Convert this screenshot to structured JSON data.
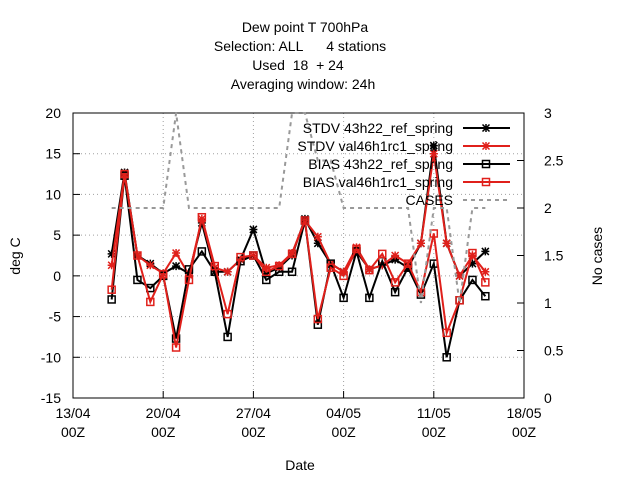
{
  "chart_data": {
    "type": "line",
    "title": "Dew point T 700hPa",
    "subtitle": [
      "Selection: ALL      4 stations",
      "Used  18  + 24",
      "Averaging window: 24h"
    ],
    "xlabel": "Date",
    "ylabel": "deg C",
    "y2label": "No cases",
    "x": [
      "16/04 00Z",
      "17/04 00Z",
      "18/04 00Z",
      "19/04 00Z",
      "20/04 00Z",
      "21/04 00Z",
      "22/04 00Z",
      "23/04 00Z",
      "24/04 00Z",
      "25/04 00Z",
      "26/04 00Z",
      "27/04 00Z",
      "28/04 00Z",
      "29/04 00Z",
      "30/04 00Z",
      "01/05 00Z",
      "02/05 00Z",
      "03/05 00Z",
      "04/05 00Z",
      "05/05 00Z",
      "06/05 00Z",
      "07/05 00Z",
      "08/05 00Z",
      "09/05 00Z",
      "10/05 00Z",
      "11/05 00Z",
      "12/05 00Z",
      "13/05 00Z",
      "14/05 00Z",
      "15/05 00Z"
    ],
    "xlim": [
      "13/04 00Z",
      "18/05 00Z"
    ],
    "xticks": [
      "13/04 00Z",
      "20/04 00Z",
      "27/04 00Z",
      "04/05 00Z",
      "11/05 00Z",
      "18/05 00Z"
    ],
    "ylim": [
      -15,
      20
    ],
    "yticks": [
      -15,
      -10,
      -5,
      0,
      5,
      10,
      15,
      20
    ],
    "y2lim": [
      0,
      3
    ],
    "y2ticks": [
      0,
      0.5,
      1,
      1.5,
      2,
      2.5,
      3
    ],
    "grid": true,
    "legend": "top-right",
    "series": [
      {
        "name": "STDV 43h22_ref_spring",
        "color": "#000000",
        "marker": "star",
        "values": [
          2.7,
          12.7,
          2.5,
          1.5,
          0.3,
          1.2,
          0.3,
          6.5,
          0.5,
          0.5,
          2.0,
          5.7,
          0.3,
          1.0,
          2.5,
          7.0,
          4.0,
          1.5,
          0.5,
          3.0,
          0.8,
          1.3,
          2.0,
          1.0,
          4.0,
          16.0,
          4.0,
          0.0,
          1.5,
          3.0
        ]
      },
      {
        "name": "STDV val46h1rc1_spring",
        "color": "#e0201b",
        "marker": "star",
        "values": [
          1.3,
          12.5,
          2.5,
          1.3,
          0.3,
          2.8,
          0.1,
          7.0,
          1.0,
          0.5,
          2.0,
          2.5,
          1.0,
          1.3,
          2.8,
          6.8,
          4.8,
          1.5,
          0.5,
          3.5,
          0.8,
          1.3,
          2.5,
          1.5,
          4.0,
          15.0,
          4.0,
          0.0,
          2.5,
          0.5
        ]
      },
      {
        "name": "BIAS 43h22_ref_spring",
        "color": "#000000",
        "marker": "square",
        "values": [
          -2.9,
          12.3,
          -0.5,
          -1.5,
          0.0,
          -7.7,
          0.8,
          3.0,
          0.5,
          -7.5,
          1.8,
          2.5,
          -0.5,
          0.5,
          0.5,
          6.8,
          -6.0,
          1.5,
          -2.7,
          3.0,
          -2.7,
          1.8,
          -2.0,
          1.0,
          -2.3,
          1.5,
          -10.0,
          -3.0,
          -0.5,
          -2.5
        ]
      },
      {
        "name": "BIAS val46h1rc1_spring",
        "color": "#e0201b",
        "marker": "square",
        "values": [
          -1.7,
          12.5,
          2.5,
          -3.2,
          0.2,
          -8.8,
          -0.5,
          7.2,
          1.2,
          -4.7,
          2.3,
          2.5,
          0.5,
          1.2,
          2.7,
          6.8,
          -5.3,
          1.0,
          0.0,
          3.3,
          0.7,
          2.7,
          -0.8,
          1.5,
          -2.0,
          5.2,
          -7.0,
          -3.0,
          2.8,
          -0.8
        ]
      },
      {
        "name": "CASES",
        "color": "#999999",
        "marker": "none",
        "dash": true,
        "axis": "y2",
        "values": [
          2,
          2,
          2,
          2,
          2,
          3,
          2,
          2,
          2,
          2,
          2,
          2,
          2,
          2,
          3,
          3,
          2.5,
          2.5,
          2,
          2,
          2,
          2,
          2,
          2,
          1,
          2,
          2,
          1,
          2,
          2
        ]
      }
    ]
  }
}
